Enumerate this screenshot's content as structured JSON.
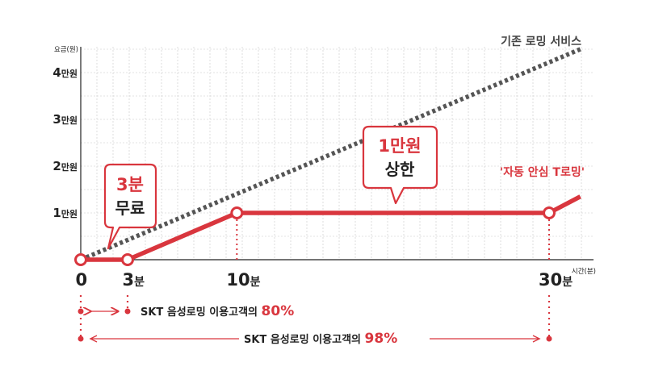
{
  "chart_data": {
    "type": "line",
    "xlabel": "시간(분)",
    "ylabel": "요금(원)",
    "x_ticks": [
      {
        "value": 0,
        "num": "0",
        "unit": ""
      },
      {
        "value": 3,
        "num": "3",
        "unit": "분"
      },
      {
        "value": 10,
        "num": "10",
        "unit": "분"
      },
      {
        "value": 30,
        "num": "30",
        "unit": "분"
      }
    ],
    "y_ticks": [
      {
        "value": 10000,
        "num": "1",
        "unit": "만원"
      },
      {
        "value": 20000,
        "num": "2",
        "unit": "만원"
      },
      {
        "value": 30000,
        "num": "3",
        "unit": "만원"
      },
      {
        "value": 40000,
        "num": "4",
        "unit": "만원"
      }
    ],
    "xlim": [
      0,
      32
    ],
    "ylim": [
      0,
      45000
    ],
    "grid": true,
    "series": [
      {
        "name": "기존 로밍 서비스",
        "color": "#555555",
        "style": "dotted",
        "points": [
          {
            "x": 0,
            "y": 0
          },
          {
            "x": 32,
            "y": 45000
          }
        ]
      },
      {
        "name": "'자동 안심 T로밍'",
        "color": "#d9363e",
        "style": "solid",
        "points": [
          {
            "x": 0,
            "y": 0
          },
          {
            "x": 3,
            "y": 0
          },
          {
            "x": 10,
            "y": 10000
          },
          {
            "x": 30,
            "y": 10000
          },
          {
            "x": 32,
            "y": 13500
          }
        ],
        "markers": [
          0,
          1,
          2,
          3
        ]
      }
    ],
    "callouts": [
      {
        "lines": [
          "3분",
          "무료"
        ]
      },
      {
        "lines": [
          "1만원",
          "상한"
        ]
      }
    ],
    "ranges": [
      {
        "from": 0,
        "to": 3,
        "text": "SKT 음성로밍 이용고객의 ",
        "pct": "80%"
      },
      {
        "from": 0,
        "to": 30,
        "text": "SKT 음성로밍 이용고객의 ",
        "pct": "98%"
      }
    ]
  }
}
